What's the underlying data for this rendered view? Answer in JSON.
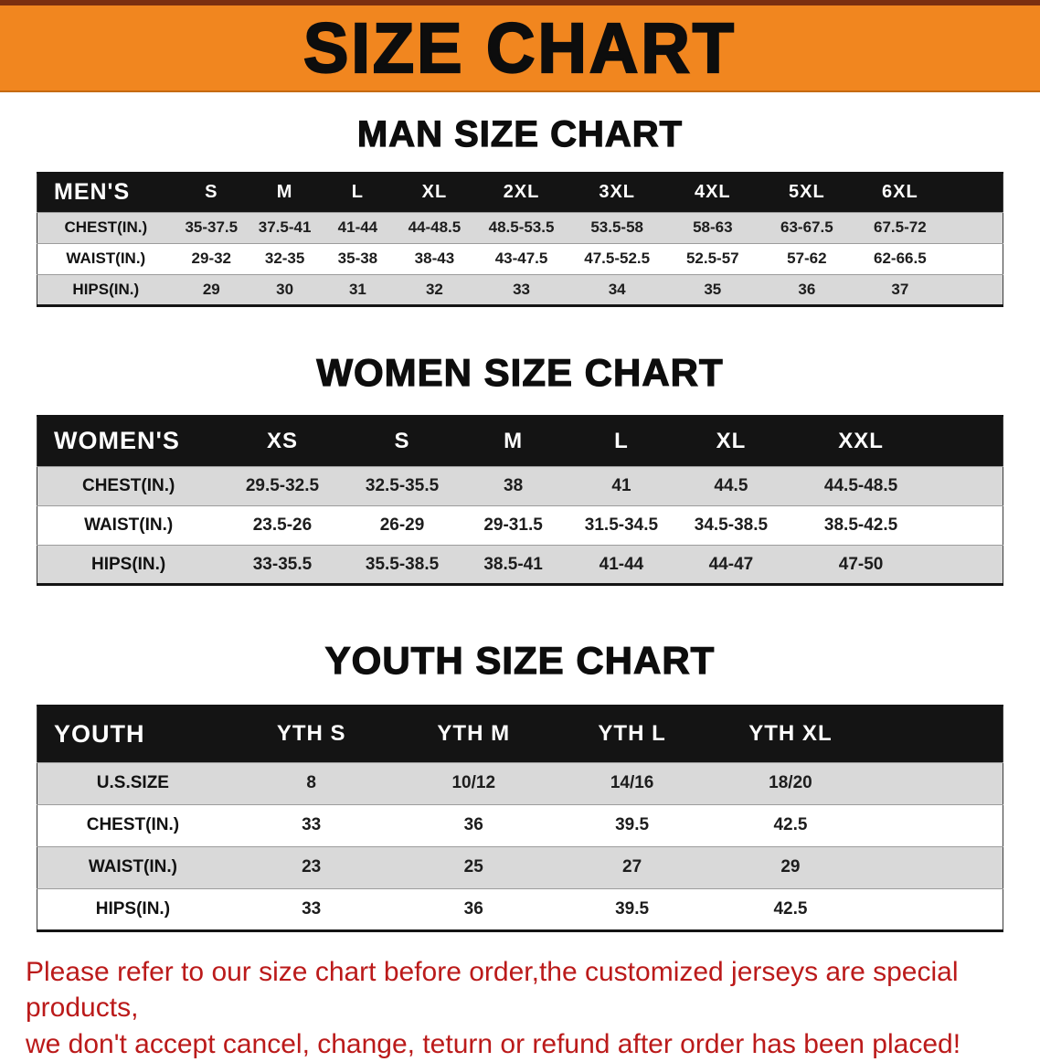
{
  "banner": {
    "title": "SIZE CHART",
    "background_color": "#f1861f"
  },
  "sections": [
    {
      "heading": "MAN SIZE CHART",
      "table": {
        "header": [
          "MEN'S",
          "S",
          "M",
          "L",
          "XL",
          "2XL",
          "3XL",
          "4XL",
          "5XL",
          "6XL"
        ],
        "rows": [
          [
            "CHEST(IN.)",
            "35-37.5",
            "37.5-41",
            "41-44",
            "44-48.5",
            "48.5-53.5",
            "53.5-58",
            "58-63",
            "63-67.5",
            "67.5-72"
          ],
          [
            "WAIST(IN.)",
            "29-32",
            "32-35",
            "35-38",
            "38-43",
            "43-47.5",
            "47.5-52.5",
            "52.5-57",
            "57-62",
            "62-66.5"
          ],
          [
            "HIPS(IN.)",
            "29",
            "30",
            "31",
            "32",
            "33",
            "34",
            "35",
            "36",
            "37"
          ]
        ]
      }
    },
    {
      "heading": "WOMEN SIZE CHART",
      "table": {
        "header": [
          "WOMEN'S",
          "XS",
          "S",
          "M",
          "L",
          "XL",
          "XXL"
        ],
        "rows": [
          [
            "CHEST(IN.)",
            "29.5-32.5",
            "32.5-35.5",
            "38",
            "41",
            "44.5",
            "44.5-48.5"
          ],
          [
            "WAIST(IN.)",
            "23.5-26",
            "26-29",
            "29-31.5",
            "31.5-34.5",
            "34.5-38.5",
            "38.5-42.5"
          ],
          [
            "HIPS(IN.)",
            "33-35.5",
            "35.5-38.5",
            "38.5-41",
            "41-44",
            "44-47",
            "47-50"
          ]
        ]
      }
    },
    {
      "heading": "YOUTH SIZE CHART",
      "table": {
        "header": [
          "YOUTH",
          "YTH S",
          "YTH M",
          "YTH L",
          "YTH XL"
        ],
        "rows": [
          [
            "U.S.SIZE",
            "8",
            "10/12",
            "14/16",
            "18/20"
          ],
          [
            "CHEST(IN.)",
            "33",
            "36",
            "39.5",
            "42.5"
          ],
          [
            "WAIST(IN.)",
            "23",
            "25",
            "27",
            "29"
          ],
          [
            "HIPS(IN.)",
            "33",
            "36",
            "39.5",
            "42.5"
          ]
        ]
      }
    }
  ],
  "disclaimer": {
    "color": "#bb1a1a",
    "lines": [
      "Please refer to our size chart before order,the customized jerseys are special products,",
      "we don't accept cancel, change, teturn or refund after order has been placed!"
    ]
  }
}
